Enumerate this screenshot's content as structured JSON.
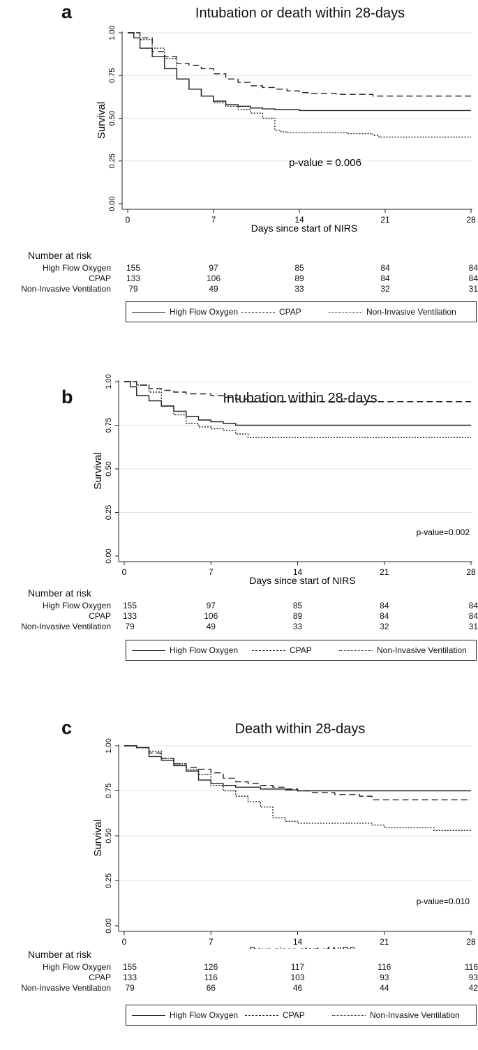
{
  "chart_data": [
    {
      "panel": "a",
      "type": "line",
      "title": "Intubation or death within 28-days",
      "xlabel": "Days since start of NIRS",
      "ylabel": "Survival",
      "xlim": [
        0,
        28
      ],
      "ylim": [
        0,
        1
      ],
      "xticks": [
        "0",
        "7",
        "14",
        "21",
        "28"
      ],
      "yticks": [
        "0.00",
        "0.25",
        "0.50",
        "0.75",
        "1.00"
      ],
      "annotation": "p-value = 0.006",
      "series": [
        {
          "name": "High Flow Oxygen",
          "style": "solid",
          "x": [
            0,
            0.5,
            1,
            2,
            3,
            4,
            5,
            6,
            7,
            8,
            9,
            10,
            11,
            12,
            14,
            28
          ],
          "y": [
            1.0,
            0.97,
            0.91,
            0.86,
            0.79,
            0.73,
            0.67,
            0.63,
            0.6,
            0.58,
            0.57,
            0.56,
            0.555,
            0.55,
            0.545,
            0.545
          ]
        },
        {
          "name": "CPAP",
          "style": "dashed",
          "x": [
            0,
            1,
            2,
            3,
            4,
            5,
            6,
            7,
            8,
            9,
            10,
            11,
            12,
            13,
            14,
            15,
            17,
            20,
            28
          ],
          "y": [
            1.0,
            0.97,
            0.89,
            0.86,
            0.82,
            0.81,
            0.79,
            0.76,
            0.73,
            0.71,
            0.69,
            0.68,
            0.67,
            0.66,
            0.65,
            0.645,
            0.64,
            0.63,
            0.63
          ]
        },
        {
          "name": "Non-Invasive Ventilation",
          "style": "dotted",
          "x": [
            0,
            1,
            2,
            3,
            4,
            5,
            6,
            7,
            8,
            9,
            10,
            11,
            12,
            12.5,
            13,
            18,
            20,
            20.5,
            28
          ],
          "y": [
            1.0,
            0.96,
            0.91,
            0.85,
            0.73,
            0.67,
            0.63,
            0.59,
            0.57,
            0.55,
            0.53,
            0.5,
            0.43,
            0.42,
            0.415,
            0.41,
            0.4,
            0.39,
            0.39
          ]
        }
      ],
      "risk_table": {
        "header": "Number at risk",
        "rows": [
          {
            "label": "High Flow Oxygen",
            "values": [
              "155",
              "97",
              "85",
              "84",
              "84"
            ]
          },
          {
            "label": "CPAP",
            "values": [
              "133",
              "106",
              "89",
              "84",
              "84"
            ]
          },
          {
            "label": "Non-Invasive Ventilation",
            "values": [
              "79",
              "49",
              "33",
              "32",
              "31"
            ]
          }
        ]
      }
    },
    {
      "panel": "b",
      "type": "line",
      "title": "Intubation within 28-days",
      "xlabel": "Days since start of NIRS",
      "ylabel": "Survival",
      "xlim": [
        0,
        28
      ],
      "ylim": [
        0,
        1
      ],
      "xticks": [
        "0",
        "7",
        "14",
        "21",
        "28"
      ],
      "yticks": [
        "0.00",
        "0.25",
        "0.50",
        "0.75",
        "1.00"
      ],
      "annotation": "p-value=0.002",
      "series": [
        {
          "name": "High Flow Oxygen",
          "style": "solid",
          "x": [
            0,
            0.5,
            1,
            2,
            3,
            4,
            5,
            6,
            7,
            8,
            9,
            28
          ],
          "y": [
            1.0,
            0.97,
            0.92,
            0.89,
            0.86,
            0.83,
            0.8,
            0.78,
            0.77,
            0.76,
            0.75,
            0.75
          ]
        },
        {
          "name": "CPAP",
          "style": "dashed",
          "x": [
            0,
            1,
            2,
            3,
            4,
            5,
            6,
            7,
            8,
            9,
            10,
            28
          ],
          "y": [
            1.0,
            0.98,
            0.96,
            0.95,
            0.94,
            0.93,
            0.93,
            0.92,
            0.91,
            0.9,
            0.885,
            0.885
          ]
        },
        {
          "name": "Non-Invasive Ventilation",
          "style": "dotted",
          "x": [
            0,
            1,
            2,
            3,
            4,
            5,
            6,
            7,
            8,
            9,
            10,
            28
          ],
          "y": [
            1.0,
            0.98,
            0.94,
            0.86,
            0.81,
            0.76,
            0.74,
            0.73,
            0.72,
            0.7,
            0.68,
            0.68
          ]
        }
      ],
      "risk_table": {
        "header": "Number at risk",
        "rows": [
          {
            "label": "High Flow Oxygen",
            "values": [
              "155",
              "97",
              "85",
              "84",
              "84"
            ]
          },
          {
            "label": "CPAP",
            "values": [
              "133",
              "106",
              "89",
              "84",
              "84"
            ]
          },
          {
            "label": "Non-Invasive Ventilation",
            "values": [
              "79",
              "49",
              "33",
              "32",
              "31"
            ]
          }
        ]
      }
    },
    {
      "panel": "c",
      "type": "line",
      "title": "Death within 28-days",
      "xlabel": "Days since start of NIRS",
      "ylabel": "Survival",
      "xlim": [
        0,
        28
      ],
      "ylim": [
        0,
        1
      ],
      "xticks": [
        "0",
        "7",
        "14",
        "21",
        "28"
      ],
      "yticks": [
        "0.00",
        "0.25",
        "0.50",
        "0.75",
        "1.00"
      ],
      "annotation": "p-value=0.010",
      "series": [
        {
          "name": "High Flow Oxygen",
          "style": "solid",
          "x": [
            0,
            1,
            2,
            3,
            4,
            5,
            6,
            7,
            8,
            9,
            10,
            11,
            12,
            13,
            14,
            28
          ],
          "y": [
            1.0,
            0.99,
            0.94,
            0.92,
            0.89,
            0.86,
            0.81,
            0.79,
            0.78,
            0.77,
            0.77,
            0.76,
            0.76,
            0.755,
            0.75,
            0.75
          ]
        },
        {
          "name": "CPAP",
          "style": "dashed",
          "x": [
            0,
            1,
            2,
            3,
            4,
            5,
            6,
            7,
            8,
            9,
            10,
            11,
            12,
            13,
            14,
            15,
            17,
            19,
            20,
            28
          ],
          "y": [
            1.0,
            0.99,
            0.96,
            0.93,
            0.9,
            0.88,
            0.87,
            0.85,
            0.82,
            0.8,
            0.79,
            0.78,
            0.77,
            0.76,
            0.75,
            0.74,
            0.73,
            0.72,
            0.7,
            0.7
          ]
        },
        {
          "name": "Non-Invasive Ventilation",
          "style": "dotted",
          "x": [
            0,
            1,
            2,
            3,
            4,
            5,
            6,
            7,
            8,
            9,
            10,
            11,
            12,
            13,
            14,
            20,
            21,
            25,
            28
          ],
          "y": [
            1.0,
            0.99,
            0.97,
            0.93,
            0.9,
            0.87,
            0.84,
            0.78,
            0.75,
            0.72,
            0.69,
            0.66,
            0.6,
            0.58,
            0.57,
            0.56,
            0.545,
            0.53,
            0.53
          ]
        }
      ],
      "risk_table": {
        "header": "Number at risk",
        "rows": [
          {
            "label": "High Flow Oxygen",
            "values": [
              "155",
              "126",
              "117",
              "116",
              "116"
            ]
          },
          {
            "label": "CPAP",
            "values": [
              "133",
              "116",
              "103",
              "93",
              "93"
            ]
          },
          {
            "label": "Non-Invasive Ventilation",
            "values": [
              "79",
              "66",
              "46",
              "44",
              "42"
            ]
          }
        ]
      }
    }
  ],
  "legend": {
    "items": [
      {
        "label": "High Flow Oxygen",
        "style": "solid"
      },
      {
        "label": "CPAP",
        "style": "dashed"
      },
      {
        "label": "Non-Invasive Ventilation",
        "style": "dotted"
      }
    ]
  }
}
